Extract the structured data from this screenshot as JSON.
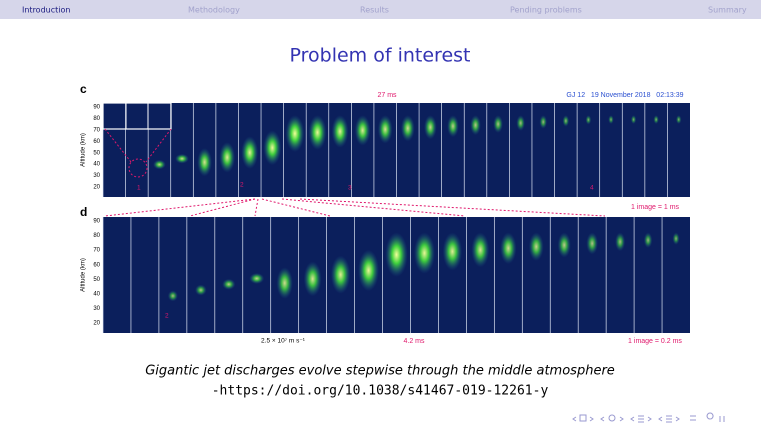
{
  "nav": [
    "Introduction",
    "Methodology",
    "Results",
    "Pending problems",
    "Summary"
  ],
  "title": "Problem of interest",
  "figure": {
    "panel_c": {
      "letter": "c",
      "time": "27 ms",
      "info": "GJ 12   19 November 2018   02:13:39",
      "axis_label": "Altitude (km)",
      "yticks": [
        90,
        80,
        70,
        60,
        50,
        40,
        30,
        20
      ],
      "markers": [
        "1",
        "2",
        "3",
        "4"
      ],
      "scale": "1 image = 1 ms"
    },
    "panel_d": {
      "letter": "d",
      "axis_label": "Altitude (km)",
      "yticks": [
        90,
        80,
        70,
        60,
        50,
        40,
        30,
        20
      ],
      "marker": "2",
      "speed": "2.5 × 10⁷ m s⁻¹",
      "time": "4.2 ms",
      "scale": "1 image = 0.2 ms"
    }
  },
  "caption": {
    "line1": "Gigantic jet discharges evolve stepwise through the middle atmosphere",
    "line2": "-https://doi.org/10.1038/s41467-019-12261-y"
  }
}
